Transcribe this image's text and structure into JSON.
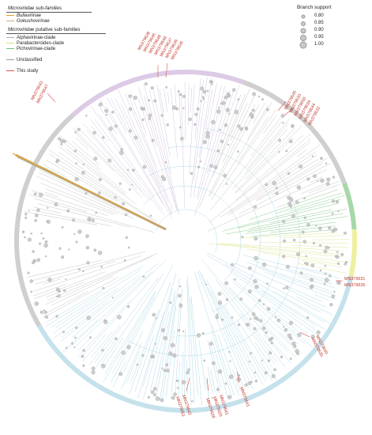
{
  "legend": {
    "subfamilies_heading": "Microviridae sub-families",
    "subfamilies": [
      {
        "name": "Bullavirinae",
        "color": "#e3a21a"
      },
      {
        "name": "Gokushovirinae",
        "color": "#c8ad7f"
      }
    ],
    "putative_heading_italic": "Microviridae",
    "putative_heading_rest": " putative sub-families",
    "putative": [
      {
        "name": "Alphavirinae-clade",
        "color": "#b9a4cf"
      },
      {
        "name": "Parabacteroides-clade",
        "color": "#d8e07a"
      },
      {
        "name": "Pichovirinae-clade",
        "color": "#6fbf73"
      }
    ],
    "unclassified": {
      "name": "Unclassified",
      "color": "#9a9a9a"
    },
    "this_study": {
      "name": "This study",
      "color": "#d9534f"
    }
  },
  "support_legend": {
    "title": "Branch support",
    "levels": [
      "0.80",
      "0.85",
      "0.90",
      "0.95",
      "1.00"
    ]
  },
  "tree": {
    "arc_colors": {
      "unclassified": "#cfcfcf",
      "alphavirinae": "#dccbe6",
      "pichovirinae": "#a6d8a8",
      "parabacteroides": "#eef0a0",
      "main": "#c5e2ec"
    },
    "branch_colors": {
      "main": "#9ccfdf",
      "unclassified": "#b5b5b5",
      "alpha": "#c7b5d8"
    },
    "labels_top": [
      "MN379638",
      "MN379646",
      "MN379648",
      "MN379649",
      "MN379637",
      "MN379639",
      "MN379636"
    ],
    "labels_left": [
      "MN379643",
      "MN379647"
    ],
    "labels_right_upper": [
      "MN379645",
      "MN379633",
      "MN379650",
      "MN379634",
      "MN379644",
      "MN379632"
    ],
    "labels_right_mid": [
      "MN379631",
      "MN379635"
    ],
    "labels_right_lower": [
      "MN379640",
      "MN379630"
    ],
    "labels_bottom": [
      "MN379641",
      "MN379642",
      "MN379651",
      "MN379628",
      "MN379629",
      "MN379641"
    ]
  }
}
